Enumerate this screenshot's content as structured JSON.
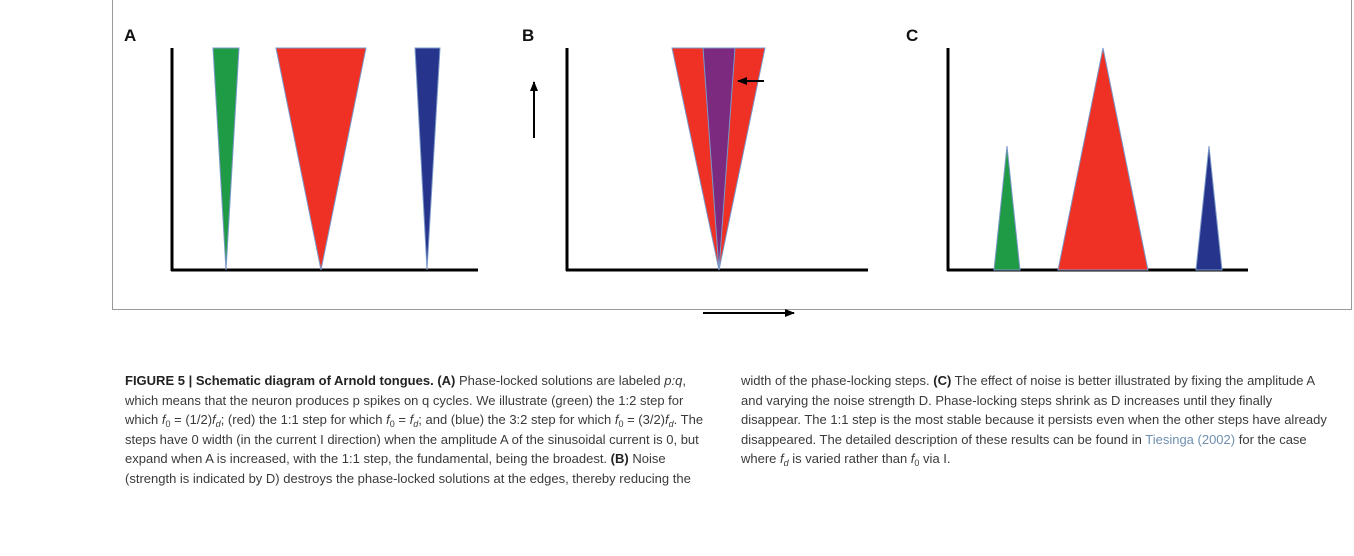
{
  "panels": {
    "a": {
      "label": "A"
    },
    "b": {
      "label": "B"
    },
    "c": {
      "label": "C"
    }
  },
  "colors": {
    "green": "#1f9a45",
    "red": "#ee3124",
    "purple": "#7b2a7f",
    "blue": "#27348b",
    "edge": "#7a98c8"
  },
  "caption": {
    "figure_label": "FIGURE 5 | Schematic diagram of Arnold tongues.",
    "a_marker": "(A)",
    "a_text_1": " Phase-locked solutions are labeled ",
    "pq": "p:q",
    "a_text_2": ", which means that the neuron produces p spikes on q cycles. We illustrate (green) the 1:2 step for which ",
    "f": "f",
    "sub0": "0",
    "subd": "d",
    "eq_half": " = (1/2)",
    "semi_red": "; (red) the 1:1 step for which ",
    "eq": " = ",
    "semi_blue": "; and (blue) the 3:2 step for which ",
    "eq_three_half": " = (3/2)",
    "period": ".",
    "a_text_3": " The steps have 0 width (in the current I direction) when the amplitude A of the sinusoidal current is 0, but expand when A is increased, with the 1:1 step, the fundamental, being the broadest. ",
    "b_marker": "(B)",
    "b_text": " Noise (strength is indicated by D) destroys the phase-locked solutions at the edges, thereby reducing the width of the phase-locking steps. ",
    "c_marker": "(C)",
    "c_text_1": " The effect of noise is better illustrated by fixing the amplitude A and varying the noise strength D. Phase-locking steps shrink as D increases until they finally disappear. The 1:1 step is the most stable because it persists even when the other steps have already disappeared. The detailed description of these results can be found in ",
    "ref": "Tiesinga (2002)",
    "c_text_2": " for the case where ",
    "c_text_3": " is varied rather than ",
    "c_text_4": " via I."
  }
}
